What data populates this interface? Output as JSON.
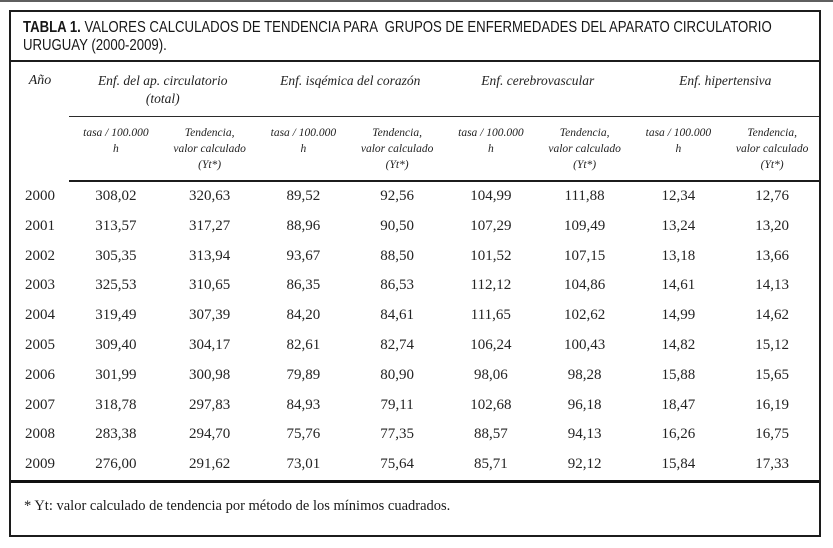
{
  "title": {
    "label": "TABLA 1.",
    "text": " VALORES CALCULADOS DE TENDENCIA PARA  GRUPOS DE ENFERMEDADES DEL APARATO CIRCULATORIO URUGUAY (2000-2009)."
  },
  "table": {
    "year_header": "Año",
    "group_headers": [
      "Enf. del ap. circulatorio\n(total)",
      "Enf. isqémica del corazón",
      "Enf. cerebrovascular",
      "Enf. hipertensiva"
    ],
    "sub_headers": [
      "tasa / 100.000\nh",
      "Tendencia,\nvalor calculado\n(Yt*)",
      "tasa / 100.000\nh",
      "Tendencia,\nvalor calculado\n(Yt*)",
      "tasa / 100.000\nh",
      "Tendencia,\nvalor calculado\n(Yt*)",
      "tasa / 100.000\nh",
      "Tendencia,\nvalor calculado\n(Yt*)"
    ],
    "rows": [
      {
        "year": "2000",
        "values": [
          "308,02",
          "320,63",
          "89,52",
          "92,56",
          "104,99",
          "111,88",
          "12,34",
          "12,76"
        ]
      },
      {
        "year": "2001",
        "values": [
          "313,57",
          "317,27",
          "88,96",
          "90,50",
          "107,29",
          "109,49",
          "13,24",
          "13,20"
        ]
      },
      {
        "year": "2002",
        "values": [
          "305,35",
          "313,94",
          "93,67",
          "88,50",
          "101,52",
          "107,15",
          "13,18",
          "13,66"
        ]
      },
      {
        "year": "2003",
        "values": [
          "325,53",
          "310,65",
          "86,35",
          "86,53",
          "112,12",
          "104,86",
          "14,61",
          "14,13"
        ]
      },
      {
        "year": "2004",
        "values": [
          "319,49",
          "307,39",
          "84,20",
          "84,61",
          "111,65",
          "102,62",
          "14,99",
          "14,62"
        ]
      },
      {
        "year": "2005",
        "values": [
          "309,40",
          "304,17",
          "82,61",
          "82,74",
          "106,24",
          "100,43",
          "14,82",
          "15,12"
        ]
      },
      {
        "year": "2006",
        "values": [
          "301,99",
          "300,98",
          "79,89",
          "80,90",
          "98,06",
          "98,28",
          "15,88",
          "15,65"
        ]
      },
      {
        "year": "2007",
        "values": [
          "318,78",
          "297,83",
          "84,93",
          "79,11",
          "102,68",
          "96,18",
          "18,47",
          "16,19"
        ]
      },
      {
        "year": "2008",
        "values": [
          "283,38",
          "294,70",
          "75,76",
          "77,35",
          "88,57",
          "94,13",
          "16,26",
          "16,75"
        ]
      },
      {
        "year": "2009",
        "values": [
          "276,00",
          "291,62",
          "73,01",
          "75,64",
          "85,71",
          "92,12",
          "15,84",
          "17,33"
        ]
      }
    ]
  },
  "footnote": "* Yt: valor calculado de tendencia por método de los mínimos cuadrados."
}
